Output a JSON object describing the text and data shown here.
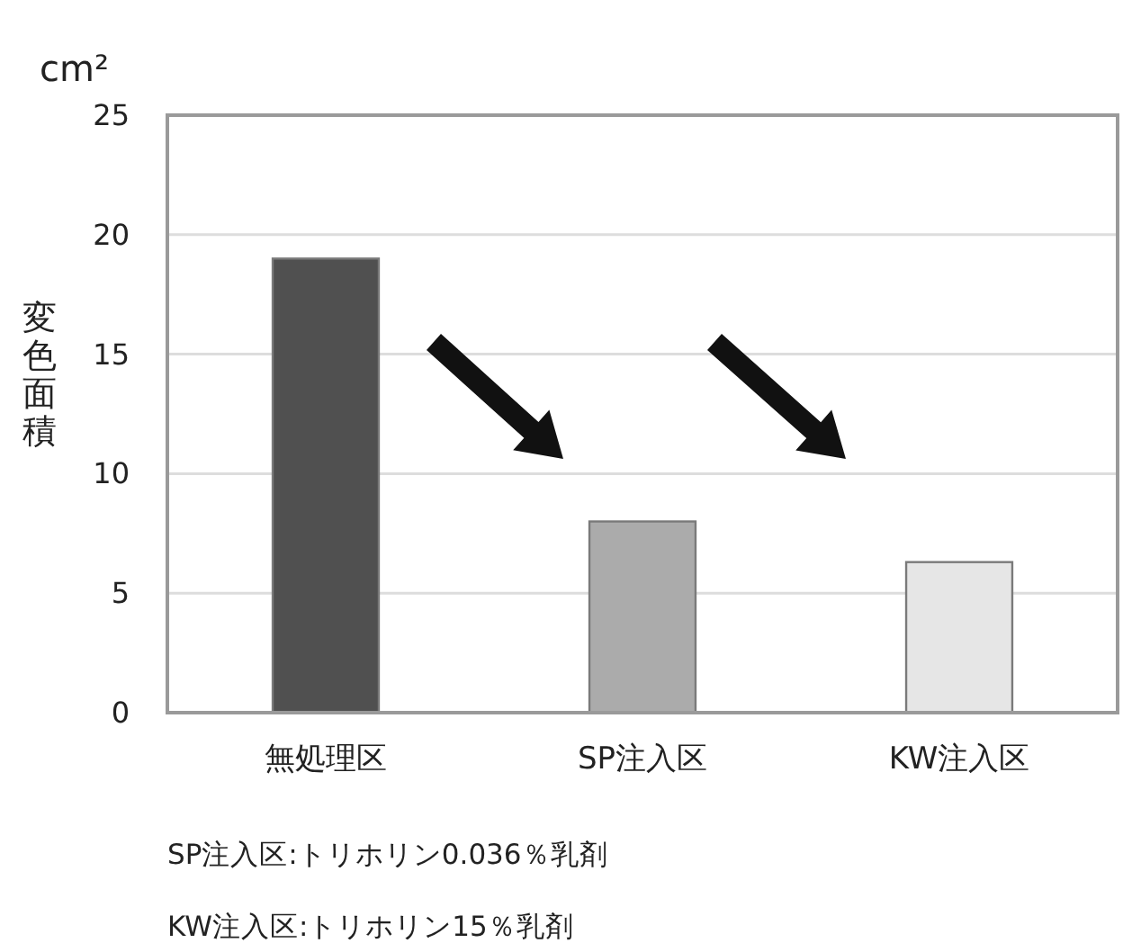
{
  "chart_data": {
    "type": "bar",
    "ylabel": "変色面積",
    "categories": [
      "無処理区",
      "SP注入区",
      "KW注入区"
    ],
    "values": [
      19,
      8,
      6.3
    ],
    "colors": [
      "#505050",
      "#ababab",
      "#e6e6e6"
    ],
    "ylim": [
      0,
      25
    ],
    "yticks": [
      0,
      5,
      10,
      15,
      20,
      25
    ],
    "grid": "y",
    "annotations": [
      "cm²",
      "SP注入区:トリホリン0.036％乳剤",
      "KW注入区:トリホリン15％乳剤"
    ]
  }
}
